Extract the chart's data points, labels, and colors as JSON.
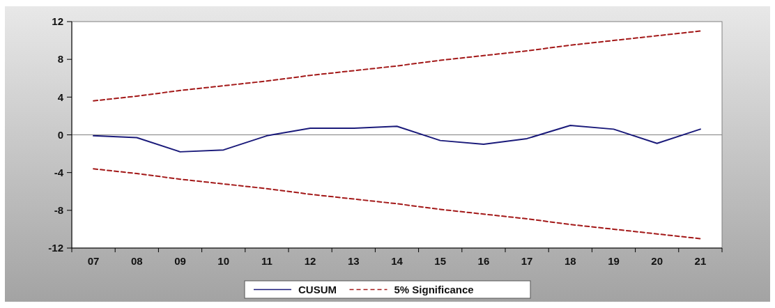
{
  "chart_data": {
    "type": "line",
    "categories": [
      "07",
      "08",
      "09",
      "10",
      "11",
      "12",
      "13",
      "14",
      "15",
      "16",
      "17",
      "18",
      "19",
      "20",
      "21"
    ],
    "series": [
      {
        "name": "CUSUM",
        "color": "#1a1a7a",
        "line_style": "solid",
        "values": [
          -0.1,
          -0.3,
          -1.8,
          -1.6,
          -0.1,
          0.7,
          0.7,
          0.9,
          -0.6,
          -1.0,
          -0.4,
          1.0,
          0.6,
          -0.9,
          0.6
        ]
      },
      {
        "name": "5% Significance",
        "color": "#a31818",
        "line_style": "dashed",
        "values": [
          3.6,
          4.1,
          4.7,
          5.2,
          5.7,
          6.3,
          6.8,
          7.3,
          7.9,
          8.4,
          8.9,
          9.5,
          10.0,
          10.5,
          11.0
        ]
      },
      {
        "color": "#a31818",
        "line_style": "dashed",
        "values": [
          -3.6,
          -4.1,
          -4.7,
          -5.2,
          -5.7,
          -6.3,
          -6.8,
          -7.3,
          -7.9,
          -8.4,
          -8.9,
          -9.5,
          -10.0,
          -10.5,
          -11.0
        ]
      }
    ],
    "ylim": [
      -12,
      12
    ],
    "yticks": [
      -12,
      -8,
      -4,
      0,
      4,
      8,
      12
    ],
    "ref_lines": [
      {
        "axis": "y",
        "value": 0,
        "color": "#808080",
        "line_style": "solid"
      }
    ],
    "legend": "bottom",
    "marker": "none"
  }
}
